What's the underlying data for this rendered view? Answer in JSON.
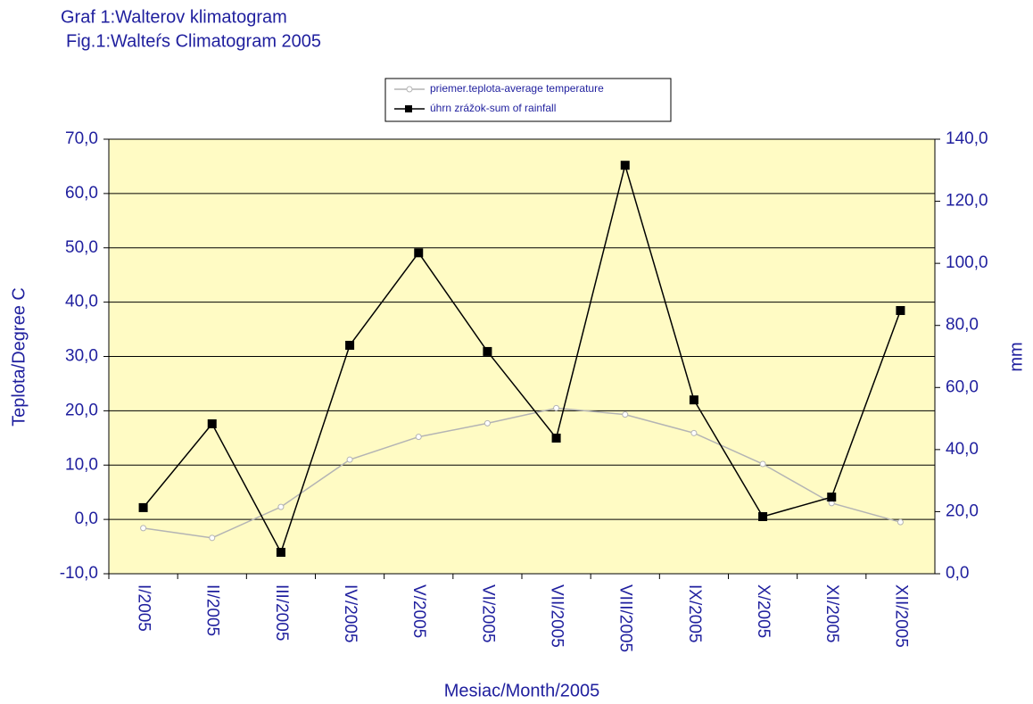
{
  "chart_data": {
    "type": "line",
    "title": "Graf 1:Walterov klimatogram",
    "subtitle": "Fig.1:Walteŕs Climatogram 2005",
    "x_label": "Mesiac/Month/2005",
    "y_label": "Teplota/Degree C",
    "y2_label": "mm",
    "categories": [
      "I/2005",
      "II/2005",
      "III/2005",
      "IV/2005",
      "V/2005",
      "VI/2005",
      "VII/2005",
      "VIII/2005",
      "IX/2005",
      "X/2005",
      "XI/2005",
      "XII/2005"
    ],
    "series": [
      {
        "name": "priemer.teplota-average temperature",
        "color": "#b4b4b4",
        "marker": "circle",
        "values": [
          -1.6,
          -3.4,
          2.3,
          11.0,
          15.2,
          17.7,
          20.5,
          19.3,
          15.9,
          10.2,
          3.0,
          -0.5
        ]
      },
      {
        "name": "úhrn zrážok-sum of rainfall",
        "color": "#000000",
        "marker": "square",
        "axis": "y2",
        "values": [
          21.3,
          48.3,
          6.9,
          73.6,
          103.4,
          71.6,
          43.7,
          131.6,
          56.0,
          18.4,
          24.7,
          84.8
        ]
      }
    ],
    "ylim": [
      -10,
      70
    ],
    "yticks": [
      {
        "value": -10,
        "label": "-10,0"
      },
      {
        "value": 0,
        "label": "0,0"
      },
      {
        "value": 10,
        "label": "10,0"
      },
      {
        "value": 20,
        "label": "20,0"
      },
      {
        "value": 30,
        "label": "30,0"
      },
      {
        "value": 40,
        "label": "40,0"
      },
      {
        "value": 50,
        "label": "50,0"
      },
      {
        "value": 60,
        "label": "60,0"
      },
      {
        "value": 70,
        "label": "70,0"
      }
    ],
    "y2lim": [
      0,
      140
    ],
    "y2ticks": [
      {
        "value": 0,
        "label": "0,0"
      },
      {
        "value": 20,
        "label": "20,0"
      },
      {
        "value": 40,
        "label": "40,0"
      },
      {
        "value": 60,
        "label": "60,0"
      },
      {
        "value": 80,
        "label": "80,0"
      },
      {
        "value": 100,
        "label": "100,0"
      },
      {
        "value": 120,
        "label": "120,0"
      },
      {
        "value": 140,
        "label": "140,0"
      }
    ],
    "grid": true,
    "legend": "top"
  }
}
